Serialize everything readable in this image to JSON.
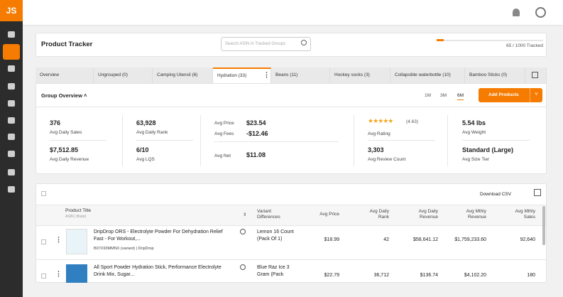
{
  "app": {
    "logo": "JS"
  },
  "header": {
    "title": "Product Tracker",
    "search_placeholder": "Search ASIN in Tracked Groups",
    "tracked": "65 / 1000 Tracked"
  },
  "tabs": [
    "Overview",
    "Ungrouped (0)",
    "Camping Utensil (6)",
    "Hydration (33)",
    "Beans (11)",
    "Hockey socks (3)",
    "Collapsible waterbottle (10)",
    "Bamboo Sticks (0)"
  ],
  "group_overview": {
    "title": "Group Overview",
    "ranges": [
      "1M",
      "3M",
      "6M"
    ],
    "button": "Add Products",
    "stats": {
      "daily_sales": {
        "value": "376",
        "label": "Avg Daily Sales"
      },
      "daily_revenue": {
        "value": "$7,512.85",
        "label": "Avg Daily Revenue"
      },
      "daily_rank": {
        "value": "63,928",
        "label": "Avg Daily Rank"
      },
      "lqs": {
        "value": "6/10",
        "label": "Avg LQS"
      },
      "price": {
        "label": "Avg Price",
        "value": "$23.54"
      },
      "fees": {
        "label": "Avg Fees",
        "value": "-$12.46"
      },
      "net": {
        "label": "Avg Net",
        "value": "$11.08"
      },
      "rating": {
        "value": "(4.63)",
        "label": "Avg Rating"
      },
      "reviews": {
        "value": "3,303",
        "label": "Avg Review Count"
      },
      "weight": {
        "value": "5.54 lbs",
        "label": "Avg Weight"
      },
      "size": {
        "value": "Standard (Large)",
        "label": "Avg Size Tier"
      }
    }
  },
  "table": {
    "download": "Download CSV",
    "columns": {
      "title": "Product Title",
      "title_sub": "ASIN | Brand",
      "variant": "Variant Differences",
      "price": "Avg Price",
      "rank": "Avg Daily Rank",
      "daily_revenue": "Avg Daily Revenue",
      "monthly_revenue": "Avg Mthly Revenue",
      "monthly_sales": "Avg Mthly Sales"
    },
    "rows": [
      {
        "title": "DripDrop ORS - Electrolyte Powder For Dehydration Relief Fast - For Workout,...",
        "asin": "B07X93MMNX (variant) | DripDrop",
        "variant": "Lemon 16 Count (Pack Of 1)",
        "price": "$18.99",
        "rank": "42",
        "daily_revenue": "$58,641.12",
        "monthly_revenue": "$1,759,233.60",
        "monthly_sales": "92,640"
      },
      {
        "title": "All Sport Powder Hydration Stick, Performance Electrolyte Drink Mix, Sugar...",
        "asin": "",
        "variant": "Blue Raz Ice 3 Gram (Pack",
        "price": "$22.79",
        "rank": "36,712",
        "daily_revenue": "$136.74",
        "monthly_revenue": "$4,102.20",
        "monthly_sales": "180"
      }
    ]
  }
}
